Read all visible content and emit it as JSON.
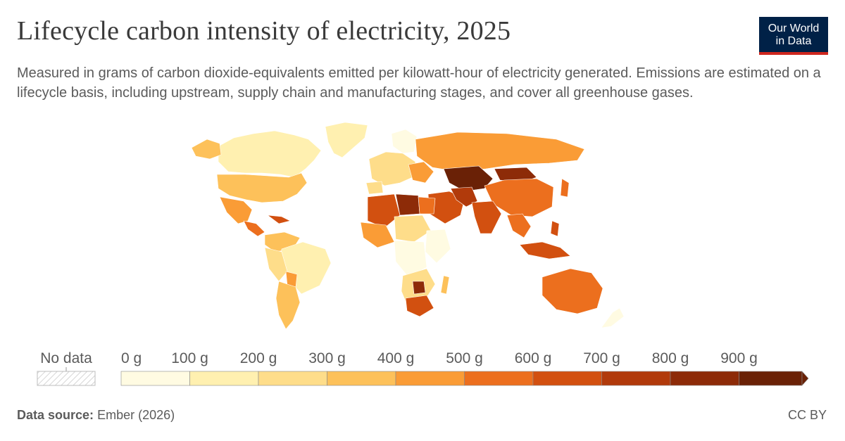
{
  "header": {
    "title": "Lifecycle carbon intensity of electricity, 2025",
    "subtitle": "Measured in grams of carbon dioxide-equivalents emitted per kilowatt-hour of electricity generated. Emissions are estimated on a lifecycle basis, including upstream, supply chain and manufacturing stages, and cover all greenhouse gases."
  },
  "logo": {
    "line1": "Our World",
    "line2": "in Data",
    "bg_color": "#002147",
    "accent_color": "#ce261e"
  },
  "legend": {
    "no_data_label": "No data",
    "bins": [
      {
        "label": "0 g",
        "color": "#fffbe2"
      },
      {
        "label": "100 g",
        "color": "#fff0b0"
      },
      {
        "label": "200 g",
        "color": "#fedd8a"
      },
      {
        "label": "300 g",
        "color": "#fdc15a"
      },
      {
        "label": "400 g",
        "color": "#fa9c36"
      },
      {
        "label": "500 g",
        "color": "#ec6f1e"
      },
      {
        "label": "600 g",
        "color": "#d25010"
      },
      {
        "label": "700 g",
        "color": "#b13a0b"
      },
      {
        "label": "800 g",
        "color": "#8d2b08"
      },
      {
        "label": "900 g",
        "color": "#6a2106"
      }
    ]
  },
  "footer": {
    "source_label": "Data source:",
    "source_value": "Ember (2026)",
    "license": "CC BY"
  }
}
